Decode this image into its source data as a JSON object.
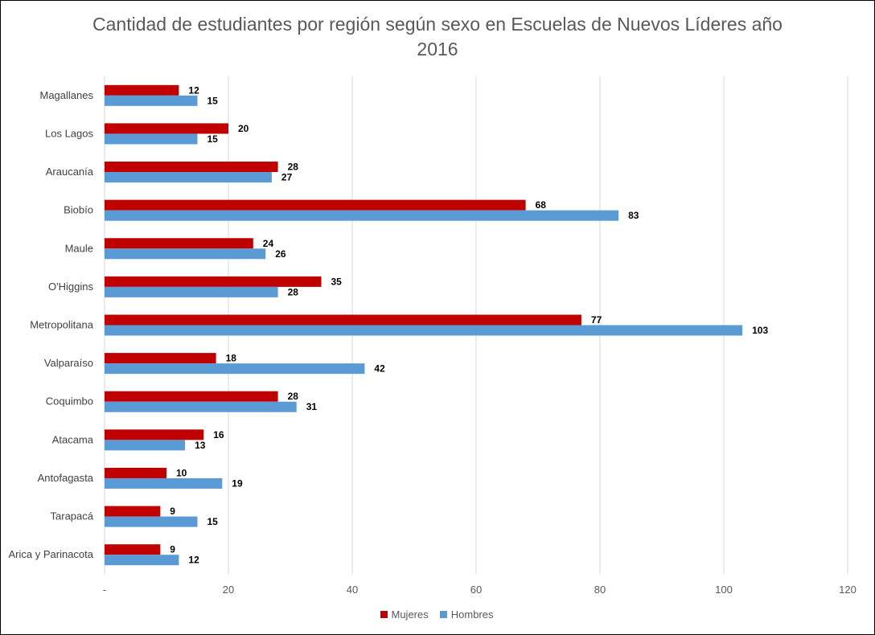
{
  "chart_data": {
    "type": "bar",
    "orientation": "horizontal",
    "title": "Cantidad de estudiantes por región según sexo en Escuelas de Nuevos Líderes año 2016",
    "title_lines": [
      "Cantidad de estudiantes por región según sexo en Escuelas de Nuevos Líderes año",
      "2016"
    ],
    "categories": [
      "Magallanes",
      "Los Lagos",
      "Araucanía",
      "Biobío",
      "Maule",
      "O'Higgins",
      "Metropolitana",
      "Valparaíso",
      "Coquimbo",
      "Atacama",
      "Antofagasta",
      "Tarapacá",
      "Arica y Parinacota"
    ],
    "series": [
      {
        "name": "Mujeres",
        "color": "#c00000",
        "values": [
          12,
          20,
          28,
          68,
          24,
          35,
          77,
          18,
          28,
          16,
          10,
          9,
          9
        ]
      },
      {
        "name": "Hombres",
        "color": "#5b9bd5",
        "values": [
          15,
          15,
          27,
          83,
          26,
          28,
          103,
          42,
          31,
          13,
          19,
          15,
          12
        ]
      }
    ],
    "xlim": [
      0,
      120
    ],
    "xticks": [
      0,
      20,
      40,
      60,
      80,
      100,
      120
    ],
    "xtick_labels": [
      "-",
      "20",
      "40",
      "60",
      "80",
      "100",
      "120"
    ],
    "grid": true,
    "legend_position": "bottom"
  }
}
